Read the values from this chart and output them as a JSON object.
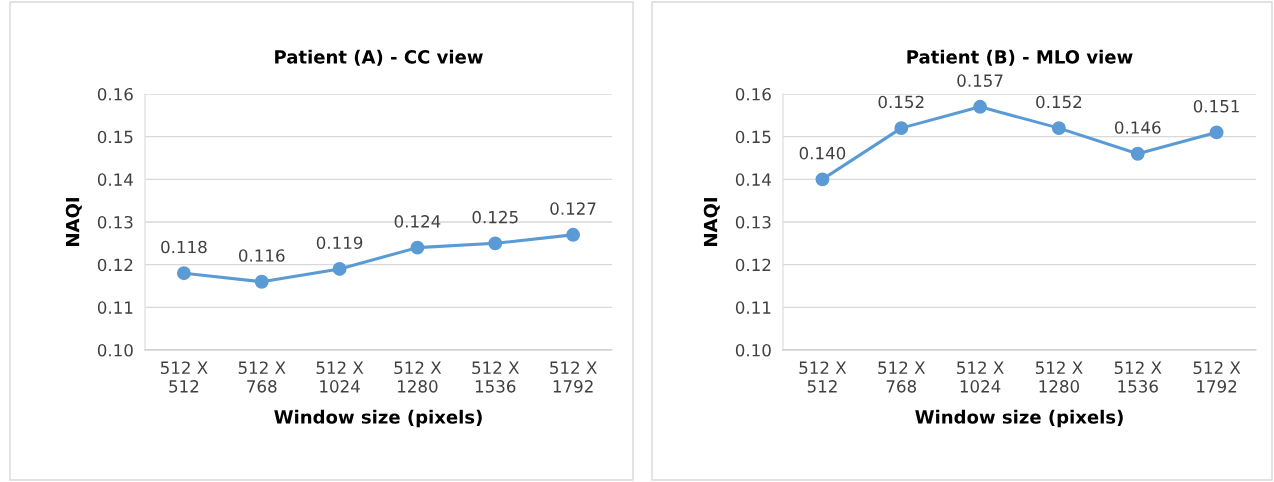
{
  "chart_data": [
    {
      "type": "line",
      "title": "Patient (A) - CC view",
      "xlabel": "Window size (pixels)",
      "ylabel": "NAQI",
      "categories": [
        "512 X\n512",
        "512 X\n768",
        "512 X\n1024",
        "512 X\n1280",
        "512 X\n1536",
        "512 X\n1792"
      ],
      "series": [
        {
          "color": "#5b9bd5",
          "values": [
            0.118,
            0.116,
            0.119,
            0.124,
            0.125,
            0.127
          ],
          "value_labels": [
            "0.118",
            "0.116",
            "0.119",
            "0.124",
            "0.125",
            "0.127"
          ]
        }
      ],
      "ylim": [
        0.1,
        0.16
      ],
      "yticks": [
        {
          "value": 0.1,
          "label": "0.10"
        },
        0.11,
        0.12,
        0.13,
        0.14,
        0.15,
        0.16
      ],
      "grid": "y",
      "marker": "circle",
      "line_style": "solid"
    },
    {
      "type": "line",
      "title": "Patient (B) - MLO view",
      "xlabel": "Window size (pixels)",
      "ylabel": "NAQI",
      "categories": [
        "512 X\n512",
        "512 X\n768",
        "512 X\n1024",
        "512 X\n1280",
        "512 X\n1536",
        "512 X\n1792"
      ],
      "series": [
        {
          "color": "#5b9bd5",
          "values": [
            0.14,
            0.152,
            0.157,
            0.152,
            0.146,
            0.151
          ],
          "value_labels": [
            "0.140",
            "0.152",
            "0.157",
            "0.152",
            "0.146",
            "0.151"
          ]
        }
      ],
      "ylim": [
        0.1,
        0.16
      ],
      "yticks": [
        {
          "value": 0.1,
          "label": "0.10"
        },
        0.11,
        0.12,
        0.13,
        0.14,
        0.15,
        0.16
      ],
      "grid": "y",
      "marker": "circle",
      "line_style": "solid"
    }
  ]
}
